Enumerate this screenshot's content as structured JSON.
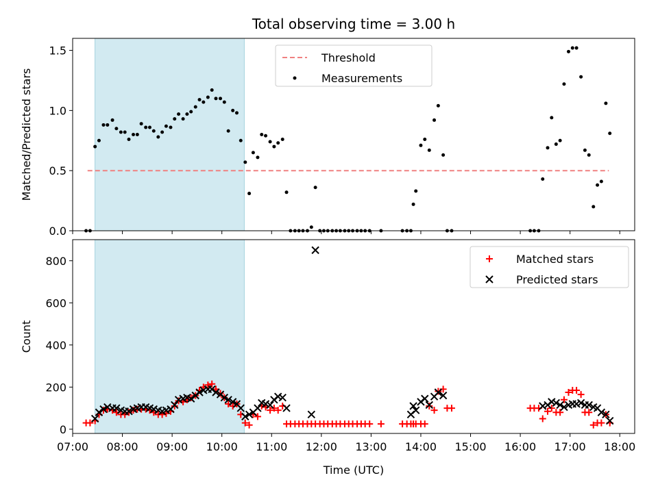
{
  "chart_data": [
    {
      "type": "scatter",
      "title": "Total observing time = 3.00 h",
      "xlabel": "",
      "ylabel": "Matched/Predicted stars",
      "xlim": [
        7.0,
        18.3
      ],
      "ylim": [
        0,
        1.6
      ],
      "x_ticks": [
        "07:00",
        "08:00",
        "09:00",
        "10:00",
        "11:00",
        "12:00",
        "13:00",
        "14:00",
        "15:00",
        "16:00",
        "17:00",
        "18:00"
      ],
      "x_tick_values": [
        7,
        8,
        9,
        10,
        11,
        12,
        13,
        14,
        15,
        16,
        17,
        18
      ],
      "y_ticks": [
        "0.0",
        "0.5",
        "1.0",
        "1.5"
      ],
      "y_tick_values": [
        0,
        0.5,
        1.0,
        1.5
      ],
      "shaded_span": [
        7.45,
        10.45
      ],
      "shade_color": "#add8e6",
      "threshold": {
        "name": "Threshold",
        "y": 0.5,
        "x_range": [
          7.3,
          17.78
        ],
        "color": "#f08080"
      },
      "legend": [
        "Threshold",
        "Measurements"
      ],
      "legend_position": "top-center",
      "series": [
        {
          "name": "Measurements",
          "color": "#000000",
          "x": [
            7.27,
            7.35,
            7.45,
            7.53,
            7.62,
            7.7,
            7.8,
            7.88,
            7.97,
            8.05,
            8.13,
            8.22,
            8.3,
            8.38,
            8.47,
            8.55,
            8.63,
            8.72,
            8.8,
            8.88,
            8.97,
            9.05,
            9.13,
            9.22,
            9.3,
            9.38,
            9.47,
            9.55,
            9.63,
            9.72,
            9.8,
            9.88,
            9.97,
            10.05,
            10.13,
            10.22,
            10.3,
            10.38,
            10.47,
            10.55,
            10.63,
            10.72,
            10.8,
            10.88,
            10.97,
            11.05,
            11.13,
            11.22,
            11.3,
            11.38,
            11.47,
            11.55,
            11.63,
            11.72,
            11.8,
            11.88,
            11.97,
            12.05,
            12.13,
            12.22,
            12.3,
            12.38,
            12.47,
            12.55,
            12.63,
            12.72,
            12.8,
            12.88,
            12.97,
            13.2,
            13.63,
            13.72,
            13.8,
            13.85,
            13.9,
            14.0,
            14.08,
            14.17,
            14.27,
            14.35,
            14.45,
            14.53,
            14.62,
            16.2,
            16.28,
            16.37,
            16.45,
            16.55,
            16.63,
            16.72,
            16.8,
            16.88,
            16.97,
            17.05,
            17.13,
            17.22,
            17.3,
            17.38,
            17.47,
            17.55,
            17.63,
            17.72,
            17.8
          ],
          "y": [
            0,
            0,
            0.7,
            0.75,
            0.88,
            0.88,
            0.92,
            0.85,
            0.82,
            0.82,
            0.76,
            0.8,
            0.8,
            0.89,
            0.86,
            0.86,
            0.83,
            0.78,
            0.82,
            0.87,
            0.86,
            0.93,
            0.97,
            0.93,
            0.97,
            0.99,
            1.03,
            1.09,
            1.07,
            1.11,
            1.17,
            1.1,
            1.1,
            1.07,
            0.83,
            1.0,
            0.98,
            0.75,
            0.57,
            0.31,
            0.65,
            0.61,
            0.8,
            0.79,
            0.74,
            0.7,
            0.73,
            0.76,
            0.32,
            0,
            0,
            0,
            0,
            0,
            0.03,
            0.36,
            0,
            0,
            0,
            0,
            0,
            0,
            0,
            0,
            0,
            0,
            0,
            0,
            0,
            0,
            0,
            0,
            0,
            0.22,
            0.33,
            0.71,
            0.76,
            0.67,
            0.92,
            1.04,
            0.63,
            0,
            0,
            0,
            0,
            0,
            0.43,
            0.69,
            0.94,
            0.72,
            0.75,
            1.22,
            1.49,
            1.52,
            1.52,
            1.28,
            0.67,
            0.63,
            0.2,
            0.38,
            0.41,
            1.06,
            0.81
          ]
        }
      ]
    },
    {
      "type": "scatter",
      "title": "",
      "xlabel": "Time (UTC)",
      "ylabel": "Count",
      "xlim": [
        7.0,
        18.3
      ],
      "ylim": [
        -20,
        900
      ],
      "x_ticks": [
        "07:00",
        "08:00",
        "09:00",
        "10:00",
        "11:00",
        "12:00",
        "13:00",
        "14:00",
        "15:00",
        "16:00",
        "17:00",
        "18:00"
      ],
      "x_tick_values": [
        7,
        8,
        9,
        10,
        11,
        12,
        13,
        14,
        15,
        16,
        17,
        18
      ],
      "y_ticks": [
        "0",
        "200",
        "400",
        "600",
        "800"
      ],
      "y_tick_values": [
        0,
        200,
        400,
        600,
        800
      ],
      "shaded_span": [
        7.45,
        10.45
      ],
      "shade_color": "#add8e6",
      "legend": [
        "Matched stars",
        "Predicted stars"
      ],
      "legend_position": "top-right",
      "series": [
        {
          "name": "Matched stars",
          "marker": "plus",
          "color": "#ff0000",
          "x": [
            7.27,
            7.35,
            7.45,
            7.53,
            7.62,
            7.7,
            7.8,
            7.88,
            7.97,
            8.05,
            8.13,
            8.22,
            8.3,
            8.38,
            8.47,
            8.55,
            8.63,
            8.72,
            8.8,
            8.88,
            8.97,
            9.05,
            9.13,
            9.22,
            9.3,
            9.38,
            9.47,
            9.55,
            9.63,
            9.72,
            9.8,
            9.88,
            9.97,
            10.05,
            10.13,
            10.22,
            10.3,
            10.38,
            10.47,
            10.55,
            10.63,
            10.72,
            10.8,
            10.88,
            10.97,
            11.05,
            11.13,
            11.22,
            11.3,
            11.38,
            11.47,
            11.55,
            11.63,
            11.72,
            11.8,
            11.88,
            11.97,
            12.05,
            12.13,
            12.22,
            12.3,
            12.38,
            12.47,
            12.55,
            12.63,
            12.72,
            12.8,
            12.88,
            12.97,
            13.2,
            13.63,
            13.72,
            13.8,
            13.85,
            13.9,
            14.0,
            14.08,
            14.17,
            14.27,
            14.35,
            14.45,
            14.53,
            14.62,
            16.2,
            16.28,
            16.37,
            16.45,
            16.55,
            16.63,
            16.72,
            16.8,
            16.88,
            16.97,
            17.05,
            17.13,
            17.22,
            17.3,
            17.38,
            17.47,
            17.55,
            17.63,
            17.72,
            17.8
          ],
          "y": [
            30,
            30,
            40,
            70,
            90,
            95,
            90,
            80,
            70,
            70,
            80,
            90,
            95,
            95,
            95,
            90,
            80,
            70,
            70,
            75,
            85,
            110,
            135,
            130,
            140,
            150,
            160,
            185,
            200,
            210,
            215,
            190,
            170,
            150,
            120,
            110,
            120,
            70,
            30,
            20,
            70,
            60,
            110,
            105,
            90,
            100,
            90,
            110,
            25,
            25,
            25,
            25,
            25,
            25,
            25,
            25,
            25,
            25,
            25,
            25,
            25,
            25,
            25,
            25,
            25,
            25,
            25,
            25,
            25,
            25,
            25,
            25,
            25,
            25,
            25,
            25,
            25,
            110,
            90,
            180,
            190,
            100,
            100,
            100,
            100,
            100,
            50,
            85,
            100,
            80,
            80,
            140,
            175,
            185,
            185,
            165,
            80,
            80,
            20,
            30,
            30,
            70,
            30
          ]
        },
        {
          "name": "Predicted stars",
          "marker": "x",
          "color": "#000000",
          "x": [
            7.45,
            7.53,
            7.62,
            7.7,
            7.8,
            7.88,
            7.97,
            8.05,
            8.13,
            8.22,
            8.3,
            8.38,
            8.47,
            8.55,
            8.63,
            8.72,
            8.8,
            8.88,
            8.97,
            9.05,
            9.13,
            9.22,
            9.3,
            9.38,
            9.47,
            9.55,
            9.63,
            9.72,
            9.8,
            9.88,
            9.97,
            10.05,
            10.13,
            10.22,
            10.3,
            10.38,
            10.47,
            10.55,
            10.63,
            10.72,
            10.8,
            10.88,
            10.97,
            11.05,
            11.13,
            11.22,
            11.3,
            11.8,
            11.88,
            13.8,
            13.85,
            13.9,
            14.0,
            14.08,
            14.17,
            14.27,
            14.35,
            14.45,
            16.45,
            16.55,
            16.63,
            16.72,
            16.8,
            16.88,
            16.97,
            17.05,
            17.13,
            17.22,
            17.3,
            17.38,
            17.47,
            17.55,
            17.63,
            17.72,
            17.8
          ],
          "y": [
            50,
            80,
            95,
            105,
            100,
            100,
            90,
            85,
            85,
            95,
            100,
            105,
            105,
            100,
            95,
            90,
            85,
            90,
            95,
            115,
            140,
            145,
            150,
            145,
            160,
            175,
            185,
            190,
            190,
            175,
            165,
            150,
            140,
            130,
            120,
            100,
            60,
            70,
            80,
            100,
            125,
            120,
            115,
            140,
            155,
            150,
            100,
            70,
            850,
            70,
            110,
            90,
            130,
            145,
            115,
            155,
            175,
            160,
            110,
            115,
            130,
            125,
            115,
            105,
            115,
            120,
            120,
            125,
            115,
            115,
            105,
            100,
            80,
            70,
            40
          ]
        }
      ]
    }
  ]
}
